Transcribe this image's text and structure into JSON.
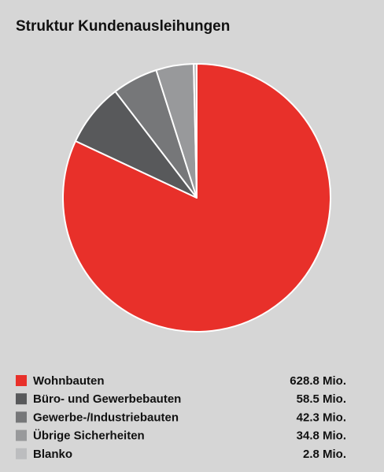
{
  "chart_data": {
    "type": "pie",
    "title": "Struktur Kundenausleihungen",
    "categories": [
      "Wohnbauten",
      "Büro- und Gewerbebauten",
      "Gewerbe-/Industriebauten",
      "Übrige Sicherheiten",
      "Blanko"
    ],
    "values": [
      628.8,
      58.5,
      42.3,
      34.8,
      2.8
    ],
    "value_labels": [
      "628.8 Mio.",
      "58.5 Mio.",
      "42.3 Mio.",
      "34.8 Mio.",
      "2.8 Mio."
    ],
    "colors": [
      "#e8302a",
      "#58595b",
      "#767779",
      "#98999b",
      "#bcbdbf"
    ]
  }
}
